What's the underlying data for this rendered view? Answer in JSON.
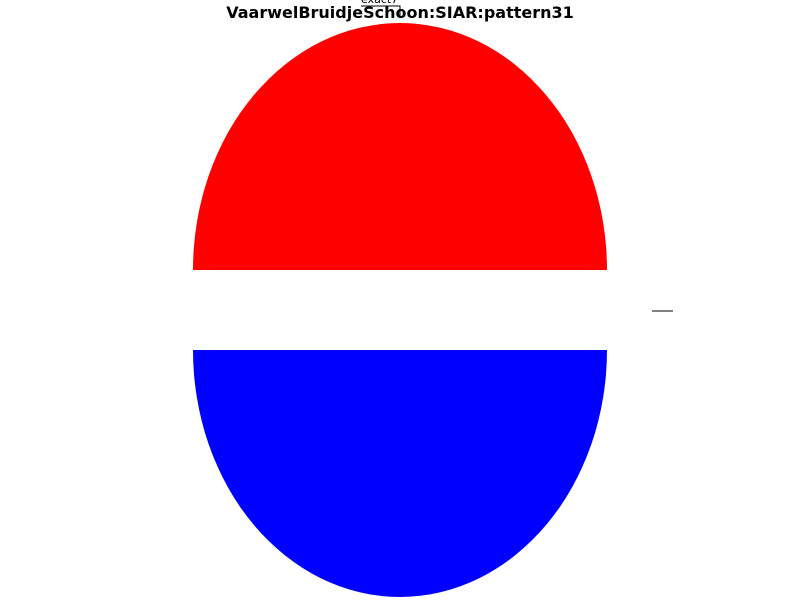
{
  "chart_data": {
    "type": "pie",
    "title": "VaarwelBruidjeSchoon:SIAR:pattern31",
    "slices": [
      {
        "label": "exact7",
        "value": 50,
        "color": "#ff0000"
      },
      {
        "label": "",
        "value": 0,
        "color": "#ffffff"
      },
      {
        "label": "exact9",
        "value": 50,
        "color": "#0000ff"
      }
    ],
    "legend": "none"
  }
}
